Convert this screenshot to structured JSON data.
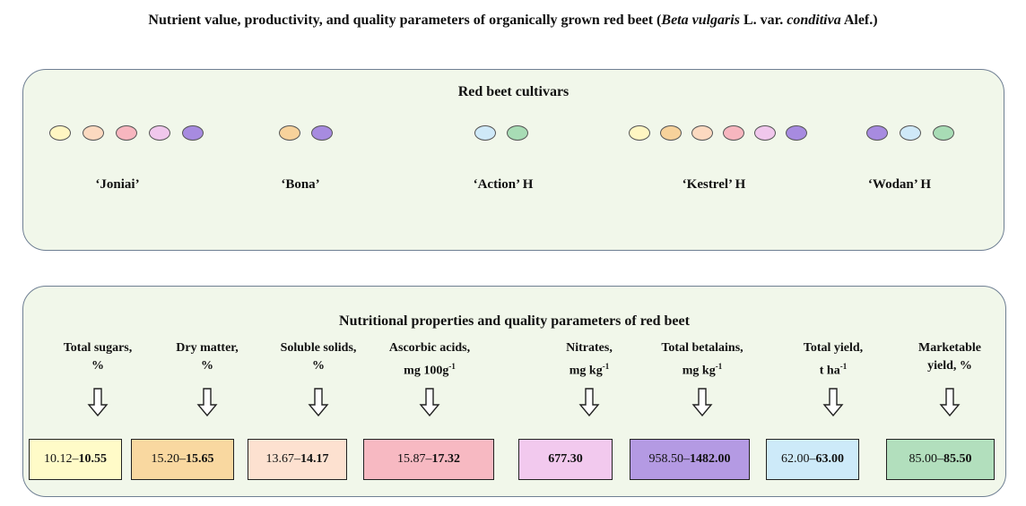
{
  "title": {
    "part1": "Nutrient value, productivity, and quality parameters of organically grown red beet (",
    "species": "Beta vulgaris",
    "part2": " L. var. ",
    "variety": "conditiva",
    "part3": " Alef.)"
  },
  "cultivars_panel": {
    "heading": "Red beet cultivars",
    "groups": [
      {
        "name": "‘Joniai’",
        "ovals": [
          "#fff6c2",
          "#fcd9c0",
          "#f7b6bf",
          "#f0c7ec",
          "#a78be0"
        ]
      },
      {
        "name": "‘Bona’",
        "ovals": [
          "#f7d29b",
          "#a78be0"
        ]
      },
      {
        "name": "‘Action’ H",
        "ovals": [
          "#cfe9f8",
          "#a8dcb5"
        ]
      },
      {
        "name": "‘Kestrel’ H",
        "ovals": [
          "#fff6c2",
          "#f7d29b",
          "#fcd9c0",
          "#f7b6bf",
          "#f0c7ec",
          "#a78be0"
        ]
      },
      {
        "name": "‘Wodan’ H",
        "ovals": [
          "#a78be0",
          "#cfe9f8",
          "#a8dcb5"
        ]
      }
    ]
  },
  "parameters_panel": {
    "heading": "Nutritional properties and quality parameters of red beet",
    "params": [
      {
        "line1": "Total sugars,",
        "line2": "%",
        "sup": "",
        "low": "10.12–",
        "high": "10.55",
        "color": "#fffbc8"
      },
      {
        "line1": "Dry matter,",
        "line2": "%",
        "sup": "",
        "low": "15.20–",
        "high": "15.65",
        "color": "#f9d8a0"
      },
      {
        "line1": "Soluble solids,",
        "line2": "%",
        "sup": "",
        "low": "13.67–",
        "high": "14.17",
        "color": "#fde1d0"
      },
      {
        "line1": "Ascorbic acids,",
        "line2": "mg 100g",
        "sup": "-1",
        "low": "15.87–",
        "high": "17.32",
        "color": "#f7b9c2"
      },
      {
        "line1": "Nitrates,",
        "line2": "mg kg",
        "sup": "-1",
        "low": "",
        "high": "677.30",
        "color": "#f2c9ee"
      },
      {
        "line1": "Total betalains,",
        "line2": "mg kg",
        "sup": "-1",
        "low": "958.50–",
        "high": "1482.00",
        "color": "#b49ae3"
      },
      {
        "line1": "Total yield,",
        "line2": "t ha",
        "sup": "-1",
        "low": "62.00–",
        "high": "63.00",
        "color": "#cdeaf9"
      },
      {
        "line1": "Marketable",
        "line2": "yield, %",
        "sup": "",
        "low": "85.00–",
        "high": "85.50",
        "color": "#b2dfbd"
      }
    ]
  }
}
